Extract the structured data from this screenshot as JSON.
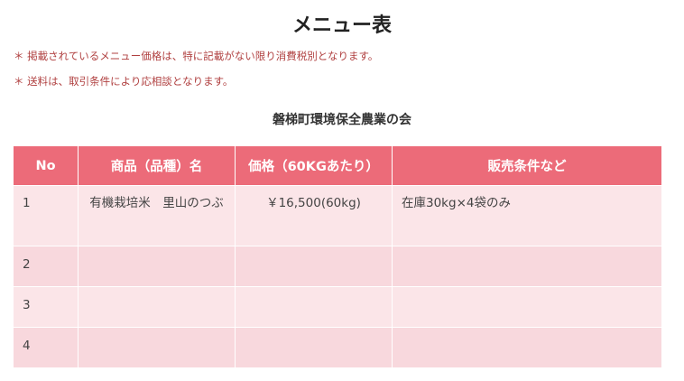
{
  "title": "メニュー表",
  "notes": [
    "＊ 掲載されているメニュー価格は、特に記載がない限り消費税別となります。",
    "＊ 送料は、取引条件により応相談となります。"
  ],
  "organization": "磐梯町環境保全農業の会",
  "table": {
    "headers": [
      "No",
      "商品（品種）名",
      "価格（60KGあたり）",
      "販売条件など"
    ],
    "rows": [
      {
        "no": "1",
        "name": "有機栽培米　里山のつぶ",
        "price": "￥16,500(60kg)",
        "conditions": "在庫30kg×4袋のみ"
      },
      {
        "no": "2",
        "name": "",
        "price": "",
        "conditions": ""
      },
      {
        "no": "3",
        "name": "",
        "price": "",
        "conditions": ""
      },
      {
        "no": "4",
        "name": "",
        "price": "",
        "conditions": ""
      }
    ]
  },
  "colors": {
    "header": "#ec6b79",
    "row_light": "#fbe5e8",
    "row_dark": "#f8d8dd",
    "note": "#b04040"
  }
}
